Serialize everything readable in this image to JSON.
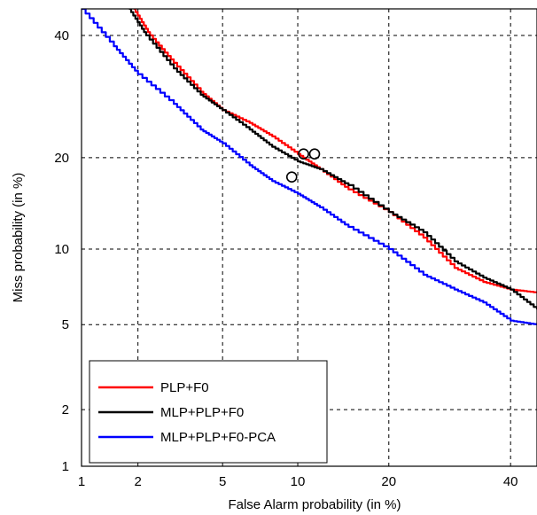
{
  "chart_data": {
    "type": "line",
    "title": "",
    "xlabel": "False Alarm probability (in %)",
    "ylabel": "Miss probability (in %)",
    "x_scale": "normal-deviate",
    "y_scale": "normal-deviate",
    "xlim": [
      1,
      45
    ],
    "ylim": [
      1,
      45
    ],
    "x_ticks": [
      1,
      2,
      5,
      10,
      20,
      40
    ],
    "y_ticks": [
      1,
      2,
      5,
      10,
      20,
      40
    ],
    "x_tick_labels": [
      "1",
      "2",
      "5",
      "10",
      "20",
      "40"
    ],
    "y_tick_labels": [
      "1",
      "2",
      "5",
      "10",
      "20",
      "40"
    ],
    "grid": true,
    "legend_position": "bottom-left",
    "series": [
      {
        "name": "PLP+F0",
        "color": "#ff0000",
        "x": [
          1.9,
          2.3,
          3,
          4,
          5,
          6.5,
          8,
          10,
          12,
          15,
          20,
          25,
          30,
          35,
          40,
          45
        ],
        "y": [
          45,
          40,
          35,
          30,
          27,
          25,
          23,
          20.5,
          18.5,
          16,
          13.5,
          11,
          8.5,
          7.5,
          7,
          6.8
        ],
        "operating_point": [
          10.5,
          20.5
        ]
      },
      {
        "name": "MLP+PLP+F0",
        "color": "#000000",
        "x": [
          1.8,
          2.2,
          3,
          4,
          5,
          6.5,
          8,
          10,
          12,
          15,
          20,
          25,
          30,
          35,
          40,
          45
        ],
        "y": [
          45,
          40,
          34,
          29.5,
          27,
          24,
          21.5,
          19.5,
          18.5,
          16.5,
          13.5,
          11.5,
          9,
          7.8,
          7,
          5.8
        ],
        "operating_point": [
          11.5,
          20.5
        ]
      },
      {
        "name": "MLP+PLP+F0-PCA",
        "color": "#0000ff",
        "x": [
          1,
          1.5,
          2,
          3,
          4,
          5,
          6.5,
          8,
          10,
          12,
          15,
          20,
          25,
          30,
          35,
          40,
          45
        ],
        "y": [
          45,
          38,
          33,
          28,
          24,
          22,
          19,
          17,
          15.5,
          14,
          12,
          10,
          8,
          7,
          6.2,
          5.2,
          5
        ],
        "operating_point": [
          9.5,
          17.5
        ]
      }
    ]
  }
}
